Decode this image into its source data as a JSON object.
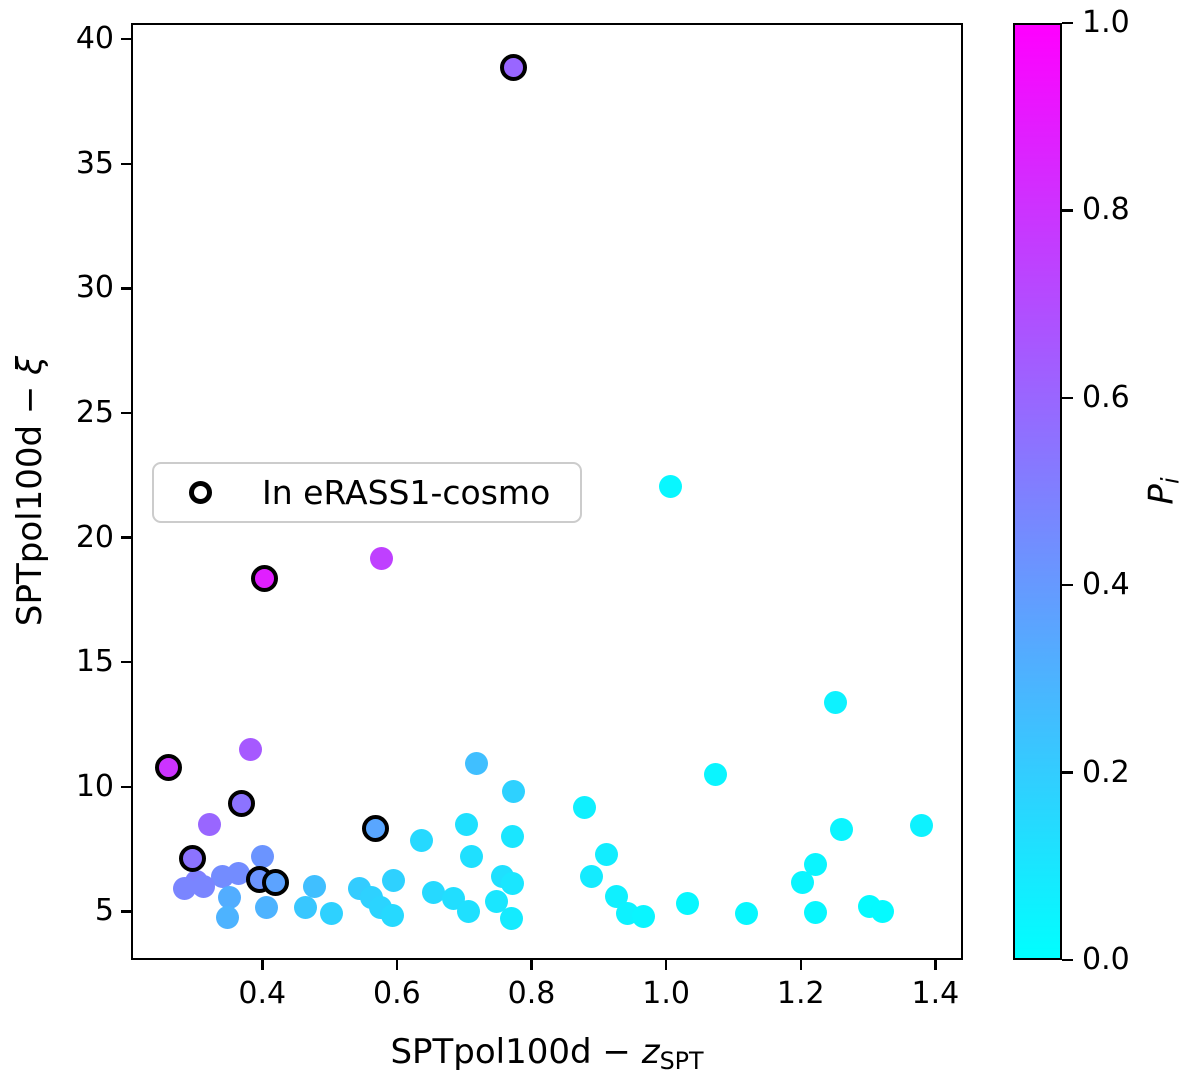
{
  "labels": {
    "x_prefix": "SPTpol100d − ",
    "x_var": "z",
    "x_sub": "SPT",
    "y_prefix": "SPTpol100d − ",
    "y_var": "ξ",
    "cbar_var": "P",
    "cbar_sub": "i"
  },
  "legend": {
    "entries": [
      {
        "label": "In eRASS1-cosmo",
        "marker": "open-black-circle"
      }
    ],
    "location": "upper-left-of-center"
  },
  "chart_data": {
    "type": "scatter",
    "title": "",
    "xlabel": "SPTpol100d - z_SPT",
    "ylabel": "SPTpol100d - xi",
    "xlim": [
      0.205,
      1.441
    ],
    "ylim": [
      3.05,
      40.65
    ],
    "xticks": [
      0.4,
      0.6,
      0.8,
      1.0,
      1.2,
      1.4
    ],
    "xtick_labels": [
      "0.4",
      "0.6",
      "0.8",
      "1.0",
      "1.2",
      "1.4"
    ],
    "yticks": [
      5,
      10,
      15,
      20,
      25,
      30,
      35,
      40
    ],
    "ytick_labels": [
      "5",
      "10",
      "15",
      "20",
      "25",
      "30",
      "35",
      "40"
    ],
    "grid": false,
    "colorbar": {
      "label": "P_i",
      "cmap": "cool",
      "color_low": "#00ffff",
      "color_high": "#ff00ff",
      "ticks": [
        0.0,
        0.2,
        0.4,
        0.6,
        0.8,
        1.0
      ],
      "tick_labels": [
        "0.0",
        "0.2",
        "0.4",
        "0.6",
        "0.8",
        "1.0"
      ]
    },
    "point_format": [
      "x_zSPT",
      "xi",
      "P_i_color_value",
      "in_eRASS1_cosmo"
    ],
    "points": [
      [
        0.774,
        38.85,
        0.6,
        1
      ],
      [
        1.006,
        22.05,
        0.03,
        0
      ],
      [
        0.577,
        19.15,
        0.75,
        0
      ],
      [
        0.404,
        18.35,
        0.88,
        1
      ],
      [
        1.251,
        13.4,
        0.05,
        0
      ],
      [
        0.382,
        11.5,
        0.65,
        0
      ],
      [
        0.718,
        10.95,
        0.25,
        0
      ],
      [
        0.262,
        10.75,
        0.8,
        1
      ],
      [
        1.074,
        10.5,
        0.04,
        0
      ],
      [
        0.773,
        9.8,
        0.18,
        0
      ],
      [
        0.37,
        9.3,
        0.55,
        1
      ],
      [
        0.879,
        9.15,
        0.06,
        0
      ],
      [
        0.321,
        8.5,
        0.6,
        0
      ],
      [
        1.379,
        8.45,
        0.05,
        0
      ],
      [
        0.569,
        8.3,
        0.35,
        1
      ],
      [
        1.261,
        8.3,
        0.04,
        0
      ],
      [
        0.703,
        8.5,
        0.12,
        0
      ],
      [
        0.772,
        8.0,
        0.1,
        0
      ],
      [
        0.636,
        7.85,
        0.15,
        0
      ],
      [
        0.911,
        7.3,
        0.07,
        0
      ],
      [
        0.401,
        7.2,
        0.42,
        0
      ],
      [
        0.711,
        7.2,
        0.12,
        0
      ],
      [
        0.297,
        7.1,
        0.55,
        1
      ],
      [
        1.222,
        6.9,
        0.04,
        0
      ],
      [
        0.364,
        6.52,
        0.45,
        0
      ],
      [
        0.341,
        6.4,
        0.45,
        0
      ],
      [
        0.889,
        6.4,
        0.08,
        0
      ],
      [
        0.757,
        6.4,
        0.12,
        0
      ],
      [
        0.397,
        6.25,
        0.42,
        1
      ],
      [
        0.595,
        6.25,
        0.18,
        0
      ],
      [
        0.302,
        6.2,
        0.5,
        0
      ],
      [
        0.421,
        6.15,
        0.36,
        1
      ],
      [
        1.203,
        6.15,
        0.04,
        0
      ],
      [
        0.772,
        6.1,
        0.1,
        0
      ],
      [
        0.478,
        6.0,
        0.25,
        0
      ],
      [
        0.313,
        5.98,
        0.48,
        0
      ],
      [
        0.285,
        5.9,
        0.48,
        0
      ],
      [
        0.545,
        5.9,
        0.2,
        0
      ],
      [
        0.655,
        5.75,
        0.15,
        0
      ],
      [
        0.926,
        5.6,
        0.06,
        0
      ],
      [
        0.351,
        5.55,
        0.32,
        0
      ],
      [
        0.563,
        5.55,
        0.18,
        0
      ],
      [
        0.684,
        5.5,
        0.13,
        0
      ],
      [
        0.748,
        5.4,
        0.1,
        0
      ],
      [
        1.031,
        5.3,
        0.03,
        0
      ],
      [
        1.302,
        5.2,
        0.02,
        0
      ],
      [
        0.406,
        5.15,
        0.3,
        0
      ],
      [
        0.464,
        5.15,
        0.22,
        0
      ],
      [
        0.576,
        5.15,
        0.17,
        0
      ],
      [
        1.321,
        5.0,
        0.02,
        0
      ],
      [
        0.706,
        5.0,
        0.12,
        0
      ],
      [
        1.222,
        4.95,
        0.03,
        0
      ],
      [
        0.503,
        4.9,
        0.18,
        0
      ],
      [
        1.119,
        4.9,
        0.03,
        0
      ],
      [
        0.943,
        4.9,
        0.05,
        0
      ],
      [
        0.966,
        4.8,
        0.04,
        0
      ],
      [
        0.349,
        4.75,
        0.3,
        0
      ],
      [
        0.593,
        4.85,
        0.15,
        0
      ],
      [
        0.771,
        4.7,
        0.08,
        0
      ]
    ]
  }
}
